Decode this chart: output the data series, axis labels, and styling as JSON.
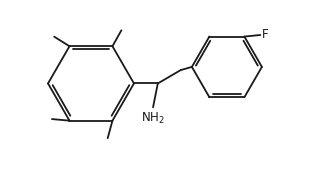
{
  "bg_color": "#ffffff",
  "line_color": "#1a1a1a",
  "line_width": 1.3,
  "font_size": 8.5,
  "figsize": [
    3.22,
    1.86
  ],
  "dpi": 100,
  "xlim": [
    0,
    10.0
  ],
  "ylim": [
    0,
    5.8
  ]
}
